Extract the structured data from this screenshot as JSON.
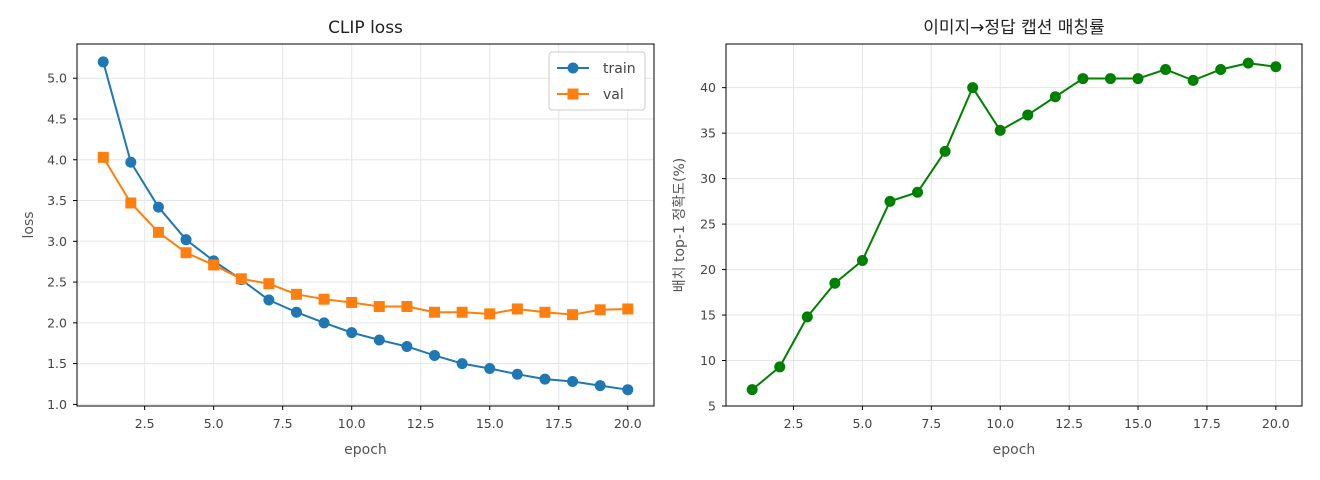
{
  "chart_data": [
    {
      "type": "line",
      "title": "CLIP loss",
      "xlabel": "epoch",
      "ylabel": "loss",
      "xlim": [
        0.05,
        20.95
      ],
      "ylim": [
        0.98,
        5.42
      ],
      "xticks": [
        "2.5",
        "5.0",
        "7.5",
        "10.0",
        "12.5",
        "15.0",
        "17.5",
        "20.0"
      ],
      "yticks": [
        "1.0",
        "1.5",
        "2.0",
        "2.5",
        "3.0",
        "3.5",
        "4.0",
        "4.5",
        "5.0"
      ],
      "grid": true,
      "legend_position": "top-right",
      "x": [
        1,
        2,
        3,
        4,
        5,
        6,
        7,
        8,
        9,
        10,
        11,
        12,
        13,
        14,
        15,
        16,
        17,
        18,
        19,
        20
      ],
      "series": [
        {
          "name": "train",
          "color": "#1f77b4",
          "marker": "circle",
          "values": [
            5.2,
            3.97,
            3.42,
            3.02,
            2.76,
            2.53,
            2.28,
            2.13,
            2.0,
            1.88,
            1.79,
            1.71,
            1.6,
            1.5,
            1.44,
            1.37,
            1.31,
            1.28,
            1.23,
            1.18
          ]
        },
        {
          "name": "val",
          "color": "#ff7f0e",
          "marker": "square",
          "values": [
            4.03,
            3.47,
            3.11,
            2.86,
            2.71,
            2.54,
            2.48,
            2.35,
            2.29,
            2.25,
            2.2,
            2.2,
            2.13,
            2.13,
            2.11,
            2.17,
            2.13,
            2.1,
            2.16,
            2.17
          ]
        }
      ]
    },
    {
      "type": "line",
      "title": "이미지→정답 캡션 매칭률",
      "xlabel": "epoch",
      "ylabel": "배치 top-1 정확도(%)",
      "xlim": [
        0.05,
        20.95
      ],
      "ylim": [
        5.0,
        44.8
      ],
      "xticks": [
        "2.5",
        "5.0",
        "7.5",
        "10.0",
        "12.5",
        "15.0",
        "17.5",
        "20.0"
      ],
      "yticks": [
        "5",
        "10",
        "15",
        "20",
        "25",
        "30",
        "35",
        "40"
      ],
      "grid": true,
      "x": [
        1,
        2,
        3,
        4,
        5,
        6,
        7,
        8,
        9,
        10,
        11,
        12,
        13,
        14,
        15,
        16,
        17,
        18,
        19,
        20
      ],
      "series": [
        {
          "color": "#008000",
          "marker": "circle",
          "values": [
            6.8,
            9.3,
            14.8,
            18.5,
            21.0,
            27.5,
            28.5,
            33.0,
            40.0,
            35.3,
            37.0,
            39.0,
            41.0,
            41.0,
            41.0,
            42.0,
            40.8,
            42.0,
            42.7,
            42.3
          ]
        }
      ]
    }
  ]
}
